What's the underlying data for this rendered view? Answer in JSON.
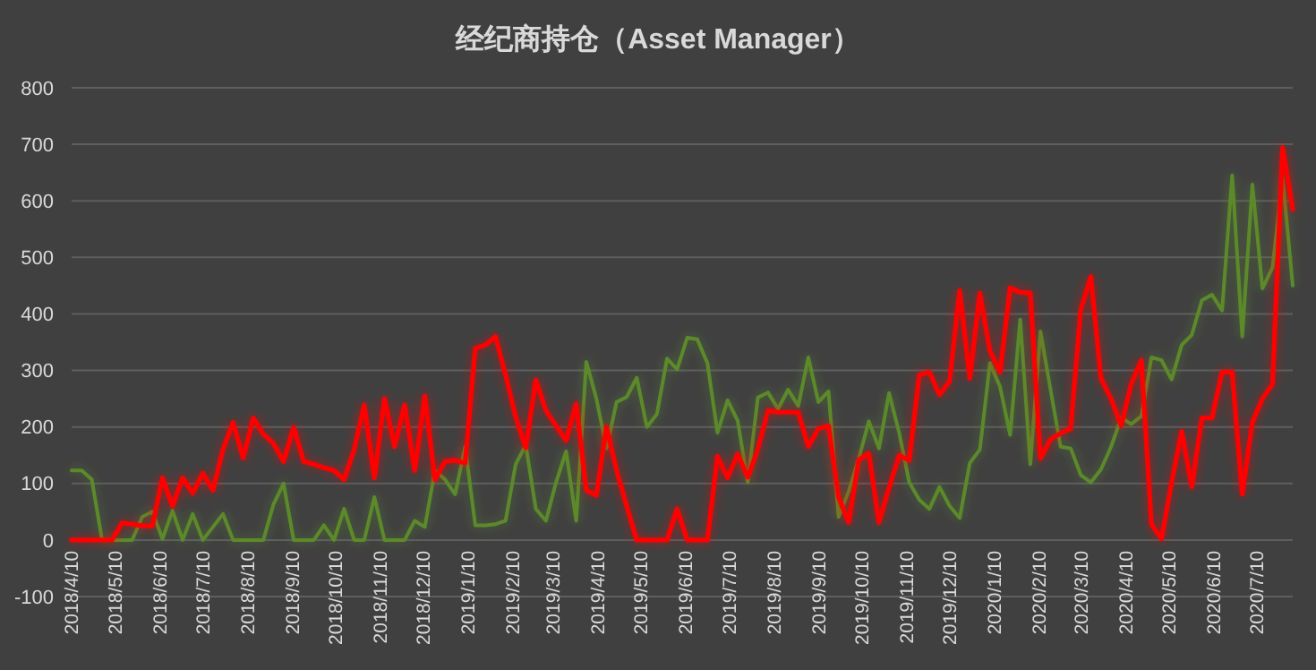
{
  "chart_data": {
    "type": "line",
    "title": "经纪商持仓（Asset Manager）",
    "x": [
      "2018-04-10",
      "2018-04-17",
      "2018-04-24",
      "2018-05-01",
      "2018-05-08",
      "2018-05-15",
      "2018-05-22",
      "2018-05-29",
      "2018-06-05",
      "2018-06-12",
      "2018-06-19",
      "2018-06-26",
      "2018-07-03",
      "2018-07-10",
      "2018-07-17",
      "2018-07-24",
      "2018-07-31",
      "2018-08-07",
      "2018-08-14",
      "2018-08-21",
      "2018-08-28",
      "2018-09-04",
      "2018-09-11",
      "2018-09-18",
      "2018-09-25",
      "2018-10-02",
      "2018-10-09",
      "2018-10-16",
      "2018-10-23",
      "2018-10-30",
      "2018-11-06",
      "2018-11-13",
      "2018-11-20",
      "2018-11-27",
      "2018-12-04",
      "2018-12-11",
      "2018-12-18",
      "2018-12-25",
      "2019-01-01",
      "2019-01-08",
      "2019-01-15",
      "2019-01-22",
      "2019-01-29",
      "2019-02-05",
      "2019-02-12",
      "2019-02-19",
      "2019-02-26",
      "2019-03-05",
      "2019-03-12",
      "2019-03-19",
      "2019-03-26",
      "2019-04-02",
      "2019-04-09",
      "2019-04-16",
      "2019-04-23",
      "2019-04-30",
      "2019-05-07",
      "2019-05-14",
      "2019-05-21",
      "2019-05-28",
      "2019-06-04",
      "2019-06-11",
      "2019-06-18",
      "2019-06-25",
      "2019-07-02",
      "2019-07-09",
      "2019-07-16",
      "2019-07-23",
      "2019-07-30",
      "2019-08-06",
      "2019-08-13",
      "2019-08-20",
      "2019-08-27",
      "2019-09-03",
      "2019-09-10",
      "2019-09-17",
      "2019-09-24",
      "2019-10-01",
      "2019-10-08",
      "2019-10-15",
      "2019-10-22",
      "2019-10-29",
      "2019-11-05",
      "2019-11-12",
      "2019-11-19",
      "2019-11-26",
      "2019-12-03",
      "2019-12-10",
      "2019-12-17",
      "2019-12-24",
      "2019-12-31",
      "2020-01-07",
      "2020-01-14",
      "2020-01-21",
      "2020-01-28",
      "2020-02-04",
      "2020-02-11",
      "2020-02-18",
      "2020-02-25",
      "2020-03-03",
      "2020-03-10",
      "2020-03-17",
      "2020-03-24",
      "2020-03-31",
      "2020-04-07",
      "2020-04-14",
      "2020-04-21",
      "2020-04-28",
      "2020-05-05",
      "2020-05-12",
      "2020-05-19",
      "2020-05-26",
      "2020-06-02",
      "2020-06-09",
      "2020-06-16",
      "2020-06-23",
      "2020-06-30",
      "2020-07-07",
      "2020-07-14",
      "2020-07-21",
      "2020-07-28",
      "2020-08-04"
    ],
    "series": [
      {
        "color": "#5b8a2b",
        "values": [
          123,
          123,
          107,
          2,
          0,
          0,
          0,
          41,
          50,
          2,
          52,
          0,
          46,
          0,
          23,
          46,
          0,
          0,
          0,
          0,
          63,
          100,
          0,
          0,
          0,
          26,
          0,
          55,
          0,
          0,
          76,
          0,
          0,
          0,
          34,
          23,
          123,
          107,
          81,
          165,
          26,
          26,
          28,
          34,
          134,
          168,
          55,
          34,
          102,
          157,
          34,
          315,
          250,
          162,
          244,
          253,
          287,
          200,
          223,
          321,
          302,
          358,
          355,
          313,
          190,
          247,
          211,
          102,
          252,
          261,
          232,
          266,
          237,
          323,
          244,
          263,
          41,
          86,
          144,
          210,
          162,
          260,
          190,
          102,
          71,
          55,
          94,
          60,
          39,
          136,
          160,
          313,
          271,
          186,
          390,
          134,
          369,
          266,
          165,
          162,
          115,
          102,
          125,
          165,
          216,
          205,
          219,
          323,
          318,
          284,
          345,
          363,
          424,
          434,
          406,
          645,
          360,
          629,
          445,
          482,
          640,
          450
        ]
      },
      {
        "color": "#ff0000",
        "values": [
          0,
          0,
          0,
          0,
          0,
          30,
          28,
          25,
          25,
          110,
          60,
          110,
          83,
          118,
          88,
          160,
          208,
          145,
          216,
          187,
          171,
          139,
          199,
          139,
          134,
          128,
          123,
          107,
          160,
          239,
          110,
          250,
          165,
          239,
          123,
          255,
          107,
          139,
          141,
          136,
          339,
          345,
          360,
          292,
          218,
          163,
          283,
          229,
          202,
          176,
          241,
          88,
          79,
          200,
          123,
          60,
          0,
          0,
          0,
          0,
          55,
          0,
          0,
          0,
          148,
          110,
          152,
          111,
          160,
          229,
          226,
          226,
          226,
          165,
          197,
          202,
          76,
          31,
          142,
          153,
          31,
          92,
          150,
          141,
          292,
          297,
          257,
          281,
          441,
          286,
          437,
          334,
          297,
          446,
          438,
          437,
          144,
          178,
          189,
          197,
          408,
          466,
          286,
          250,
          202,
          276,
          318,
          28,
          2,
          102,
          192,
          94,
          216,
          216,
          297,
          297,
          81,
          208,
          250,
          276,
          694,
          585
        ]
      }
    ],
    "xlim": [
      "2018-04-10",
      "2020-08-04"
    ],
    "xticks": [
      {
        "value": "2018-04-10",
        "label": "2018/4/10"
      },
      {
        "value": "2018-05-10",
        "label": "2018/5/10"
      },
      {
        "value": "2018-06-10",
        "label": "2018/6/10"
      },
      {
        "value": "2018-07-10",
        "label": "2018/7/10"
      },
      {
        "value": "2018-08-10",
        "label": "2018/8/10"
      },
      {
        "value": "2018-09-10",
        "label": "2018/9/10"
      },
      {
        "value": "2018-10-10",
        "label": "2018/10/10"
      },
      {
        "value": "2018-11-10",
        "label": "2018/11/10"
      },
      {
        "value": "2018-12-10",
        "label": "2018/12/10"
      },
      {
        "value": "2019-01-10",
        "label": "2019/1/10"
      },
      {
        "value": "2019-02-10",
        "label": "2019/2/10"
      },
      {
        "value": "2019-03-10",
        "label": "2019/3/10"
      },
      {
        "value": "2019-04-10",
        "label": "2019/4/10"
      },
      {
        "value": "2019-05-10",
        "label": "2019/5/10"
      },
      {
        "value": "2019-06-10",
        "label": "2019/6/10"
      },
      {
        "value": "2019-07-10",
        "label": "2019/7/10"
      },
      {
        "value": "2019-08-10",
        "label": "2019/8/10"
      },
      {
        "value": "2019-09-10",
        "label": "2019/9/10"
      },
      {
        "value": "2019-10-10",
        "label": "2019/10/10"
      },
      {
        "value": "2019-11-10",
        "label": "2019/11/10"
      },
      {
        "value": "2019-12-10",
        "label": "2019/12/10"
      },
      {
        "value": "2020-01-10",
        "label": "2020/1/10"
      },
      {
        "value": "2020-02-10",
        "label": "2020/2/10"
      },
      {
        "value": "2020-03-10",
        "label": "2020/3/10"
      },
      {
        "value": "2020-04-10",
        "label": "2020/4/10"
      },
      {
        "value": "2020-05-10",
        "label": "2020/5/10"
      },
      {
        "value": "2020-06-10",
        "label": "2020/6/10"
      },
      {
        "value": "2020-07-10",
        "label": "2020/7/10"
      }
    ],
    "ylim": [
      -100,
      800
    ],
    "yticks": [
      -100,
      0,
      100,
      200,
      300,
      400,
      500,
      600,
      700,
      800
    ],
    "grid": "y",
    "marker": "none",
    "line_style": "solid"
  }
}
